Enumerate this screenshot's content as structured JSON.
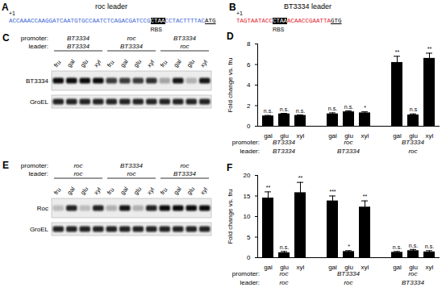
{
  "panels": {
    "A": {
      "label": "A",
      "title": "roc leader",
      "start": "+1",
      "color": "#3a66d6",
      "before": "ACCAAACCAAGGATCAATGTGCCAATCTCAGACGATCCG",
      "rbs": "CTAA",
      "after": "CCTACTTTTAC",
      "start_codon": "ATG",
      "rbs_label": "RBS"
    },
    "B": {
      "label": "B",
      "title": "BT3334 leader",
      "start": "+1",
      "color": "#e5202a",
      "before": "TAGTAATACC",
      "rbs": "CTAA",
      "after": "ACAACCGAATTA",
      "start_codon": "GTG",
      "rbs_label": "RBS"
    },
    "C": {
      "label": "C",
      "row_headers": [
        "promoter:",
        "leader:"
      ],
      "groups": [
        {
          "promoter": "BT3334",
          "leader": "BT3334"
        },
        {
          "promoter": "roc",
          "leader": "BT3334"
        },
        {
          "promoter": "BT3334",
          "leader": "roc"
        }
      ],
      "lanes": [
        "fru",
        "gal",
        "glu",
        "xyl"
      ],
      "blots": [
        {
          "name": "BT3334",
          "intensity": [
            0.95,
            0.95,
            0.95,
            0.95,
            0.75,
            0.75,
            0.75,
            0.8,
            0.3,
            0.9,
            0.25,
            0.9
          ]
        },
        {
          "name": "GroEL",
          "intensity": [
            0.85,
            0.85,
            0.85,
            0.85,
            0.85,
            0.85,
            0.85,
            0.85,
            0.85,
            0.85,
            0.85,
            0.85
          ]
        }
      ]
    },
    "E": {
      "label": "E",
      "row_headers": [
        "promoter:",
        "leader:"
      ],
      "groups": [
        {
          "promoter": "roc",
          "leader": "roc"
        },
        {
          "promoter": "BT3334",
          "leader": "roc"
        },
        {
          "promoter": "roc",
          "leader": "BT3334"
        }
      ],
      "lanes": [
        "fru",
        "gal",
        "glu",
        "xyl"
      ],
      "blots": [
        {
          "name": "Roc",
          "intensity": [
            0.2,
            0.85,
            0.2,
            0.85,
            0.25,
            0.9,
            0.25,
            0.85,
            0.95,
            0.95,
            0.95,
            0.95
          ]
        },
        {
          "name": "GroEL",
          "intensity": [
            0.85,
            0.85,
            0.85,
            0.85,
            0.85,
            0.85,
            0.85,
            0.85,
            0.85,
            0.85,
            0.85,
            0.85
          ]
        }
      ]
    }
  },
  "chart_data": [
    {
      "type": "bar",
      "label": "D",
      "ylabel": "Fold change vs. fru",
      "color": "#000000",
      "row_headers": [
        "promoter:",
        "leader:"
      ],
      "groups": [
        {
          "promoter": "BT3334",
          "leader": "BT3334"
        },
        {
          "promoter": "roc",
          "leader": "BT3334"
        },
        {
          "promoter": "BT3334",
          "leader": "roc"
        }
      ],
      "categories": [
        "gal",
        "glu",
        "xyl",
        "gal",
        "glu",
        "xyl",
        "gal",
        "glu",
        "xyl"
      ],
      "values": [
        1.0,
        1.2,
        1.05,
        1.2,
        1.4,
        1.3,
        6.2,
        1.1,
        6.6
      ],
      "errors": [
        0.05,
        0.05,
        0.05,
        0.1,
        0.1,
        0.1,
        0.6,
        0.1,
        0.5
      ],
      "significance": [
        "n.s.",
        "n.s.",
        "n.s.",
        "n.s.",
        "n.s.",
        "*",
        "**",
        "n.s",
        "**"
      ],
      "ylim": [
        0,
        8
      ],
      "yticks": [
        0,
        2,
        4,
        6,
        8
      ]
    },
    {
      "type": "bar",
      "label": "F",
      "ylabel": "Fold change vs. fru",
      "color": "#000000",
      "row_headers": [
        "promoter:",
        "leader:"
      ],
      "groups": [
        {
          "promoter": "roc",
          "leader": "roc"
        },
        {
          "promoter": "BT3334",
          "leader": "roc"
        },
        {
          "promoter": "roc",
          "leader": "BT3334"
        }
      ],
      "categories": [
        "gal",
        "glu",
        "xyl",
        "gal",
        "glu",
        "xyl",
        "gal",
        "glu",
        "xyl"
      ],
      "values": [
        14.5,
        1.2,
        15.8,
        13.8,
        1.5,
        12.3,
        1.3,
        1.7,
        1.4
      ],
      "errors": [
        1.5,
        0.3,
        2.5,
        1.2,
        0.2,
        1.5,
        0.2,
        0.3,
        0.3
      ],
      "significance": [
        "**",
        "n.s.",
        "**",
        "***",
        "*",
        "**",
        "n.s.",
        "n.s.",
        "n.s."
      ],
      "ylim": [
        0,
        20
      ],
      "yticks": [
        0,
        5,
        10,
        15,
        20
      ]
    }
  ]
}
